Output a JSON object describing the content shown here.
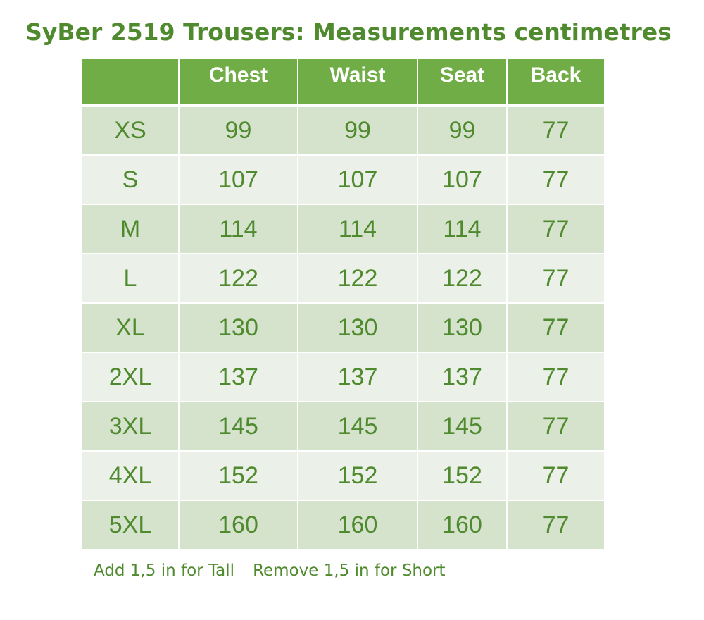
{
  "title": "SyBer 2519 Trousers: Measurements centimetres",
  "table": {
    "headers": [
      "",
      "Chest",
      "Waist",
      "Seat",
      "Back"
    ],
    "rows": [
      [
        "XS",
        "99",
        "99",
        "99",
        "77"
      ],
      [
        "S",
        "107",
        "107",
        "107",
        "77"
      ],
      [
        "M",
        "114",
        "114",
        "114",
        "77"
      ],
      [
        "L",
        "122",
        "122",
        "122",
        "77"
      ],
      [
        "XL",
        "130",
        "130",
        "130",
        "77"
      ],
      [
        "2XL",
        "137",
        "137",
        "137",
        "77"
      ],
      [
        "3XL",
        "145",
        "145",
        "145",
        "77"
      ],
      [
        "4XL",
        "152",
        "152",
        "152",
        "77"
      ],
      [
        "5XL",
        "160",
        "160",
        "160",
        "77"
      ]
    ]
  },
  "footnote": {
    "tall": "Add 1,5 in for  Tall",
    "short": "Remove 1,5 in for Short"
  },
  "colors": {
    "header_bg": "#70ad47",
    "row_dark": "#d5e3cd",
    "row_light": "#ebf1e8",
    "text_green": "#4f8a2e"
  }
}
